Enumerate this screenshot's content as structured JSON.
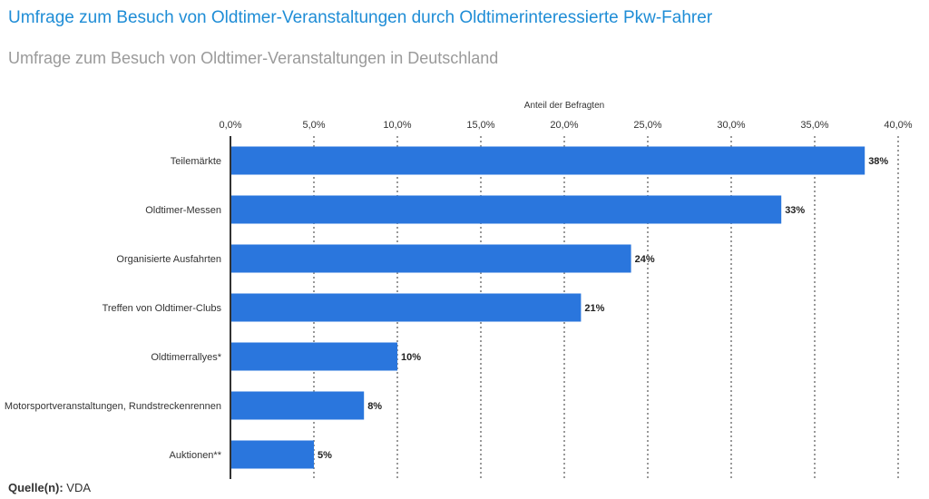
{
  "header": {
    "title": "Umfrage zum Besuch von Oldtimer-Veranstaltungen durch Oldtimerinteressierte Pkw-Fahrer",
    "subtitle": "Umfrage zum Besuch von Oldtimer-Veranstaltungen in Deutschland"
  },
  "source": {
    "label": "Quelle(n):",
    "value": "VDA"
  },
  "chart_data": {
    "type": "bar",
    "orientation": "horizontal",
    "xlabel": "Anteil der Befragten",
    "xlim": [
      0,
      40
    ],
    "ticks": [
      "0,0%",
      "5,0%",
      "10,0%",
      "15,0%",
      "20,0%",
      "25,0%",
      "30,0%",
      "35,0%",
      "40,0%"
    ],
    "tick_values": [
      0,
      5,
      10,
      15,
      20,
      25,
      30,
      35,
      40
    ],
    "grid": true,
    "bar_color": "#2a76dd",
    "categories": [
      "Teilemärkte",
      "Oldtimer-Messen",
      "Organisierte Ausfahrten",
      "Treffen von Oldtimer-Clubs",
      "Oldtimerrallyes*",
      "Motorsportveranstaltungen, Rundstreckenrennen",
      "Auktionen**"
    ],
    "values": [
      38,
      33,
      24,
      21,
      10,
      8,
      5
    ],
    "value_labels": [
      "38%",
      "33%",
      "24%",
      "21%",
      "10%",
      "8%",
      "5%"
    ]
  }
}
